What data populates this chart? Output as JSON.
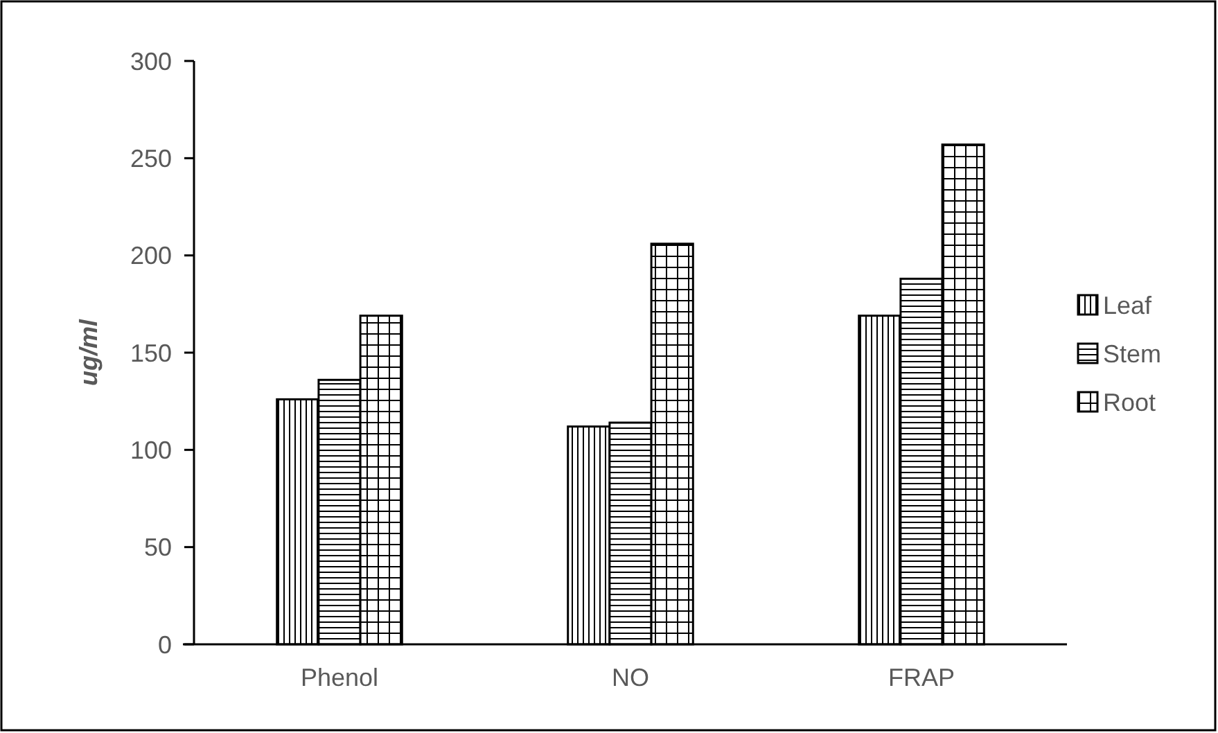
{
  "chart_data": {
    "type": "bar",
    "ylabel": "ug/ml",
    "categories": [
      "Phenol",
      "NO",
      "FRAP"
    ],
    "series": [
      {
        "name": "Leaf",
        "color": "#000000",
        "values": [
          126,
          112,
          169
        ]
      },
      {
        "name": "Stem",
        "color": "#000000",
        "values": [
          136,
          114,
          188
        ]
      },
      {
        "name": "Root",
        "color": "#000000",
        "values": [
          169,
          206,
          257
        ]
      }
    ],
    "ylim": [
      0,
      300
    ],
    "yticks": [
      0,
      50,
      100,
      150,
      200,
      250,
      300
    ],
    "grid": false,
    "legend": "right"
  }
}
